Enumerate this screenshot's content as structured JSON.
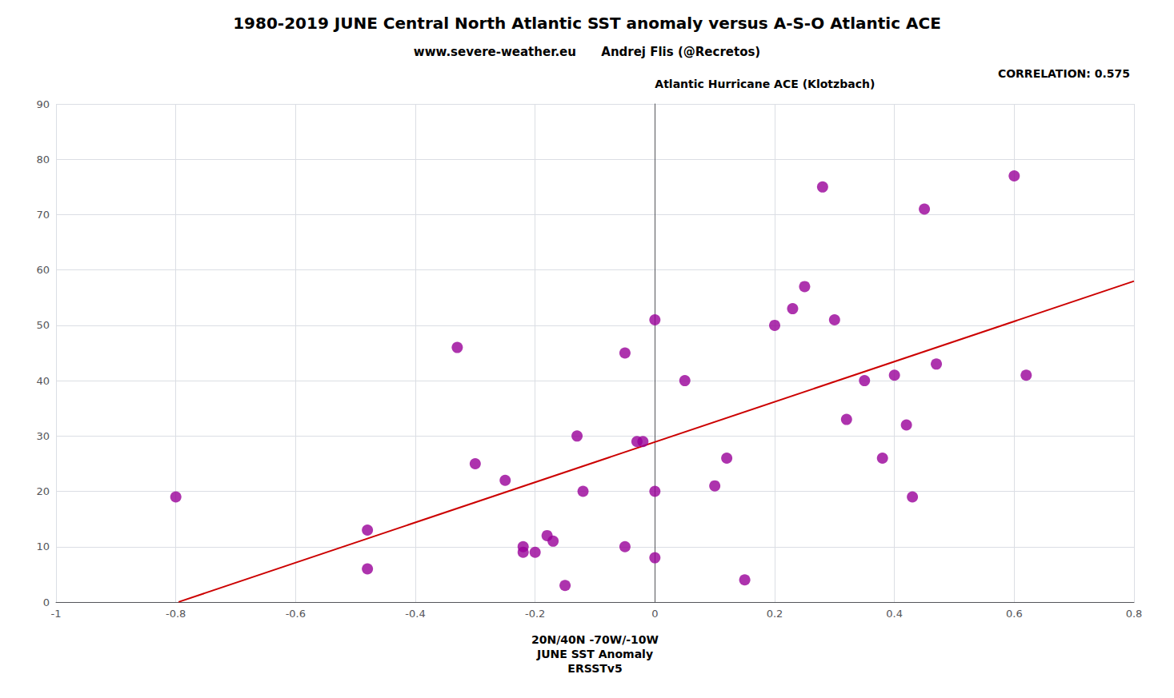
{
  "chart_data": {
    "type": "scatter",
    "title": "1980-2019 JUNE Central North Atlantic SST anomaly versus A-S-O Atlantic ACE",
    "subtitle": "www.severe-weather.eu      Andrej Flis (@Recretos)",
    "annotation": "CORRELATION: 0.575",
    "y_label": "Atlantic Hurricane ACE (Klotzbach)",
    "x_label": "20N/40N -70W/-10W\nJUNE SST Anomaly\nERSSTv5",
    "xlim": [
      -1.0,
      0.8
    ],
    "ylim": [
      0,
      90
    ],
    "xticks": [
      -1,
      -0.8,
      -0.6,
      -0.4,
      -0.2,
      0,
      0.2,
      0.4,
      0.6,
      0.8
    ],
    "yticks": [
      0,
      10,
      20,
      30,
      40,
      50,
      60,
      70,
      80,
      90
    ],
    "grid": true,
    "series": [
      {
        "type": "scatter",
        "color": "#990099",
        "marker": "circle",
        "x": [
          -0.8,
          -0.48,
          -0.48,
          -0.33,
          -0.3,
          -0.25,
          -0.22,
          -0.22,
          -0.2,
          -0.18,
          -0.17,
          -0.15,
          -0.13,
          -0.12,
          -0.05,
          -0.05,
          -0.03,
          -0.02,
          0.0,
          0.0,
          0.0,
          0.05,
          0.1,
          0.12,
          0.15,
          0.2,
          0.23,
          0.25,
          0.28,
          0.3,
          0.32,
          0.35,
          0.38,
          0.4,
          0.42,
          0.43,
          0.45,
          0.47,
          0.6,
          0.62
        ],
        "values": [
          19,
          13,
          6,
          46,
          25,
          22,
          9,
          10,
          9,
          12,
          11,
          3,
          30,
          20,
          10,
          45,
          29,
          29,
          51,
          20,
          8,
          40,
          21,
          26,
          4,
          50,
          53,
          57,
          75,
          51,
          33,
          40,
          26,
          41,
          32,
          19,
          71,
          43,
          77,
          41
        ]
      },
      {
        "type": "line",
        "color": "#cc0000",
        "line_style": "solid",
        "x": [
          -0.79532,
          0.8
        ],
        "values": [
          0.0127,
          57.9826
        ]
      }
    ]
  }
}
